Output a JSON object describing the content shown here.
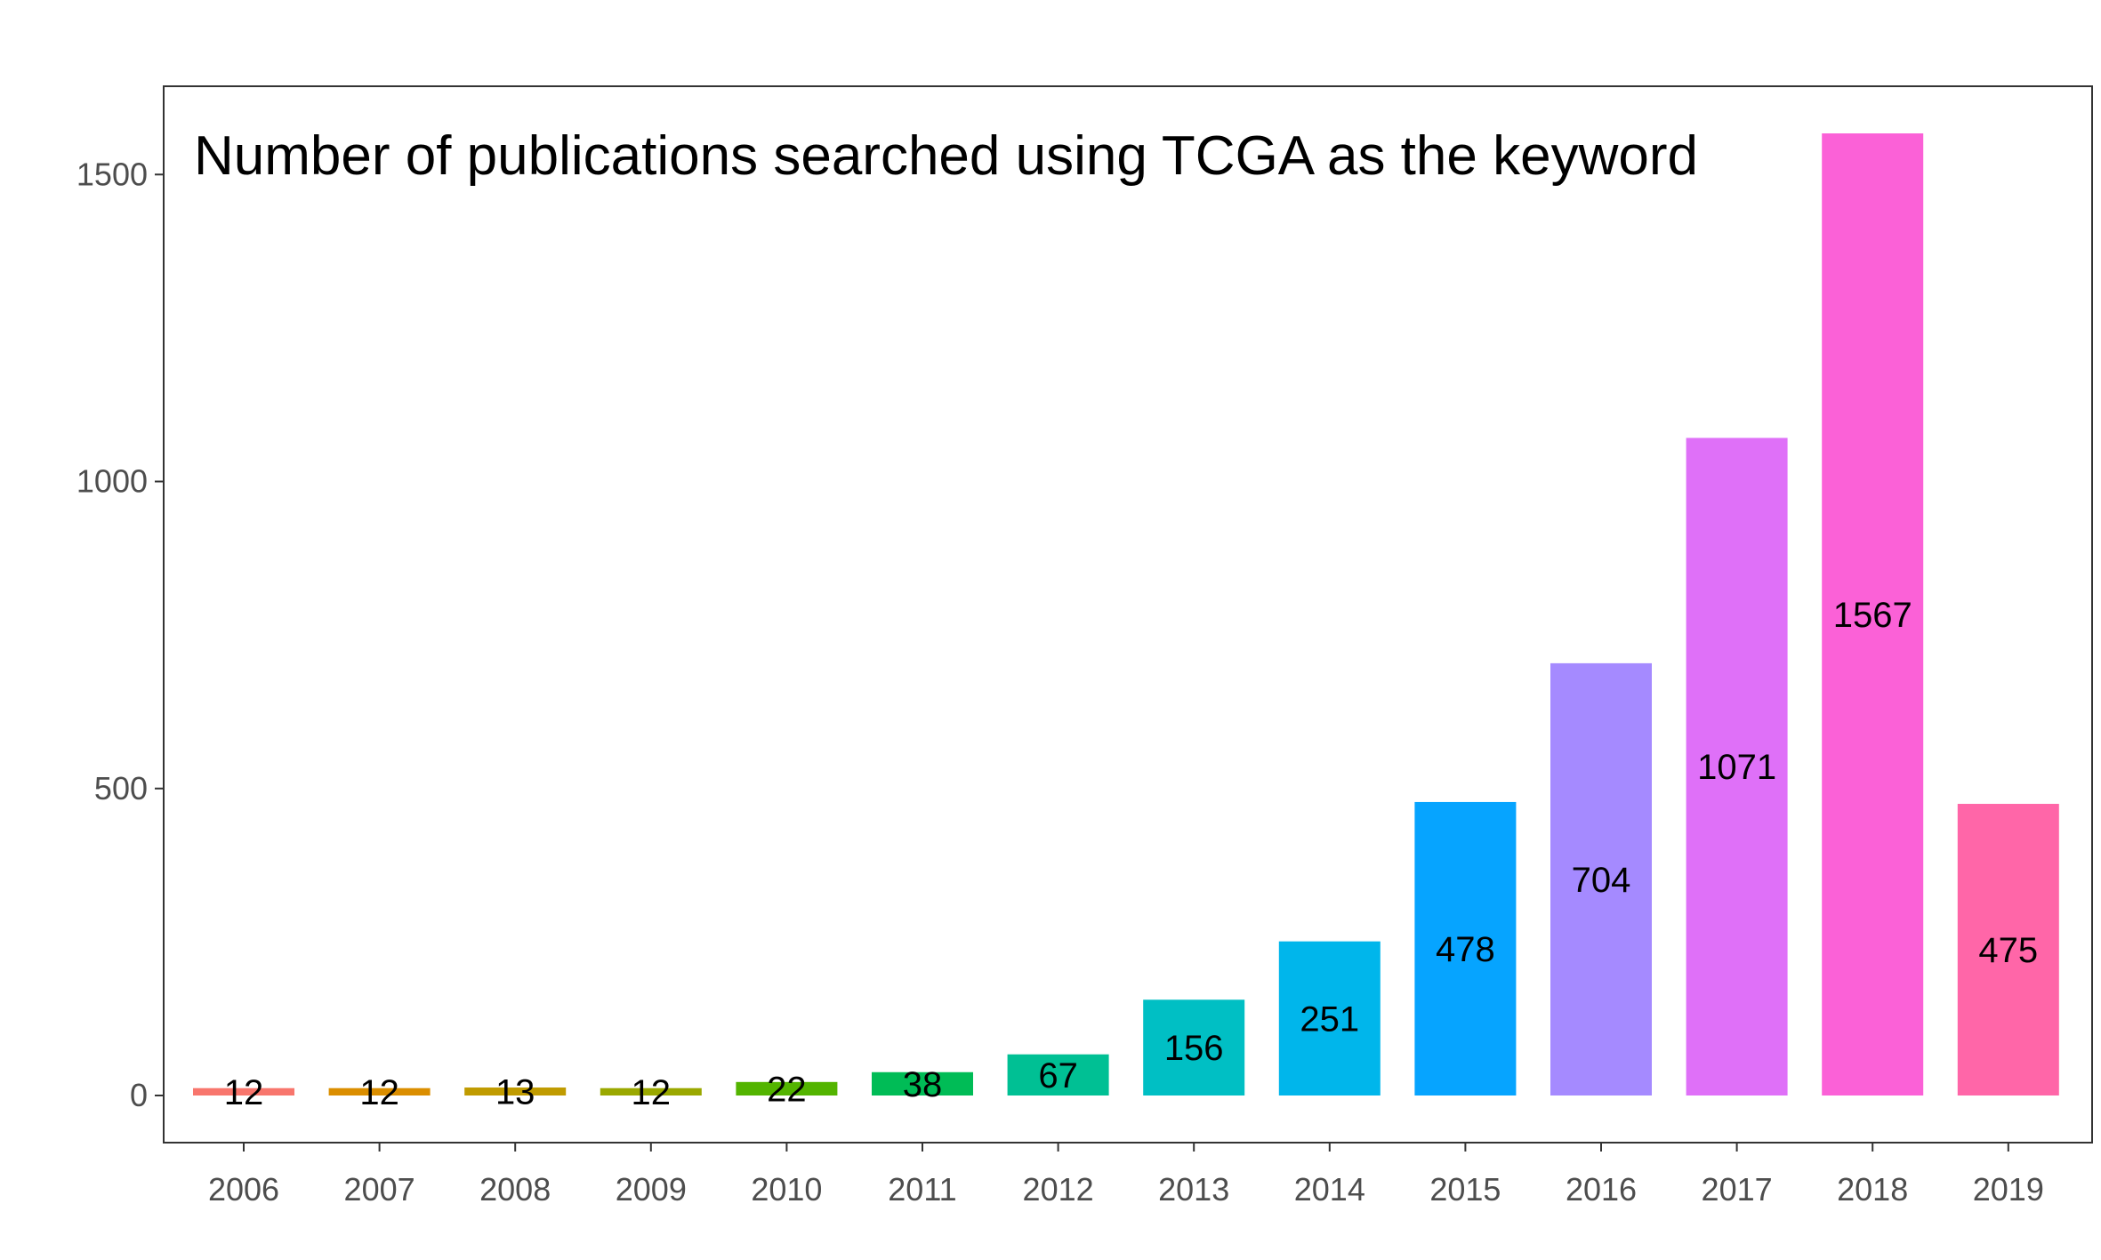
{
  "chart_data": {
    "type": "bar",
    "title": "Number of publications searched using TCGA as the keyword",
    "xlabel": "",
    "ylabel": "",
    "categories": [
      "2006",
      "2007",
      "2008",
      "2009",
      "2010",
      "2011",
      "2012",
      "2013",
      "2014",
      "2015",
      "2016",
      "2017",
      "2018",
      "2019"
    ],
    "values": [
      12,
      12,
      13,
      12,
      22,
      38,
      67,
      156,
      251,
      478,
      704,
      1071,
      1567,
      475
    ],
    "data_labels": [
      "12",
      "12",
      "13",
      "12",
      "22",
      "38",
      "67",
      "156",
      "251",
      "478",
      "704",
      "1071",
      "1567",
      "475"
    ],
    "colors": [
      "#F8766D",
      "#DB8E00",
      "#C09B00",
      "#9AA800",
      "#53B400",
      "#00BC56",
      "#00C094",
      "#00BFC4",
      "#00B6EB",
      "#06A4FF",
      "#A58AFF",
      "#DF70F8",
      "#FB61D7",
      "#FF66A8"
    ],
    "ylim": [
      -78,
      1640
    ],
    "yticks": [
      0,
      500,
      1000,
      1500
    ],
    "ytick_labels": [
      "0",
      "500",
      "1000",
      "1500"
    ],
    "grid": false,
    "legend": "none"
  }
}
